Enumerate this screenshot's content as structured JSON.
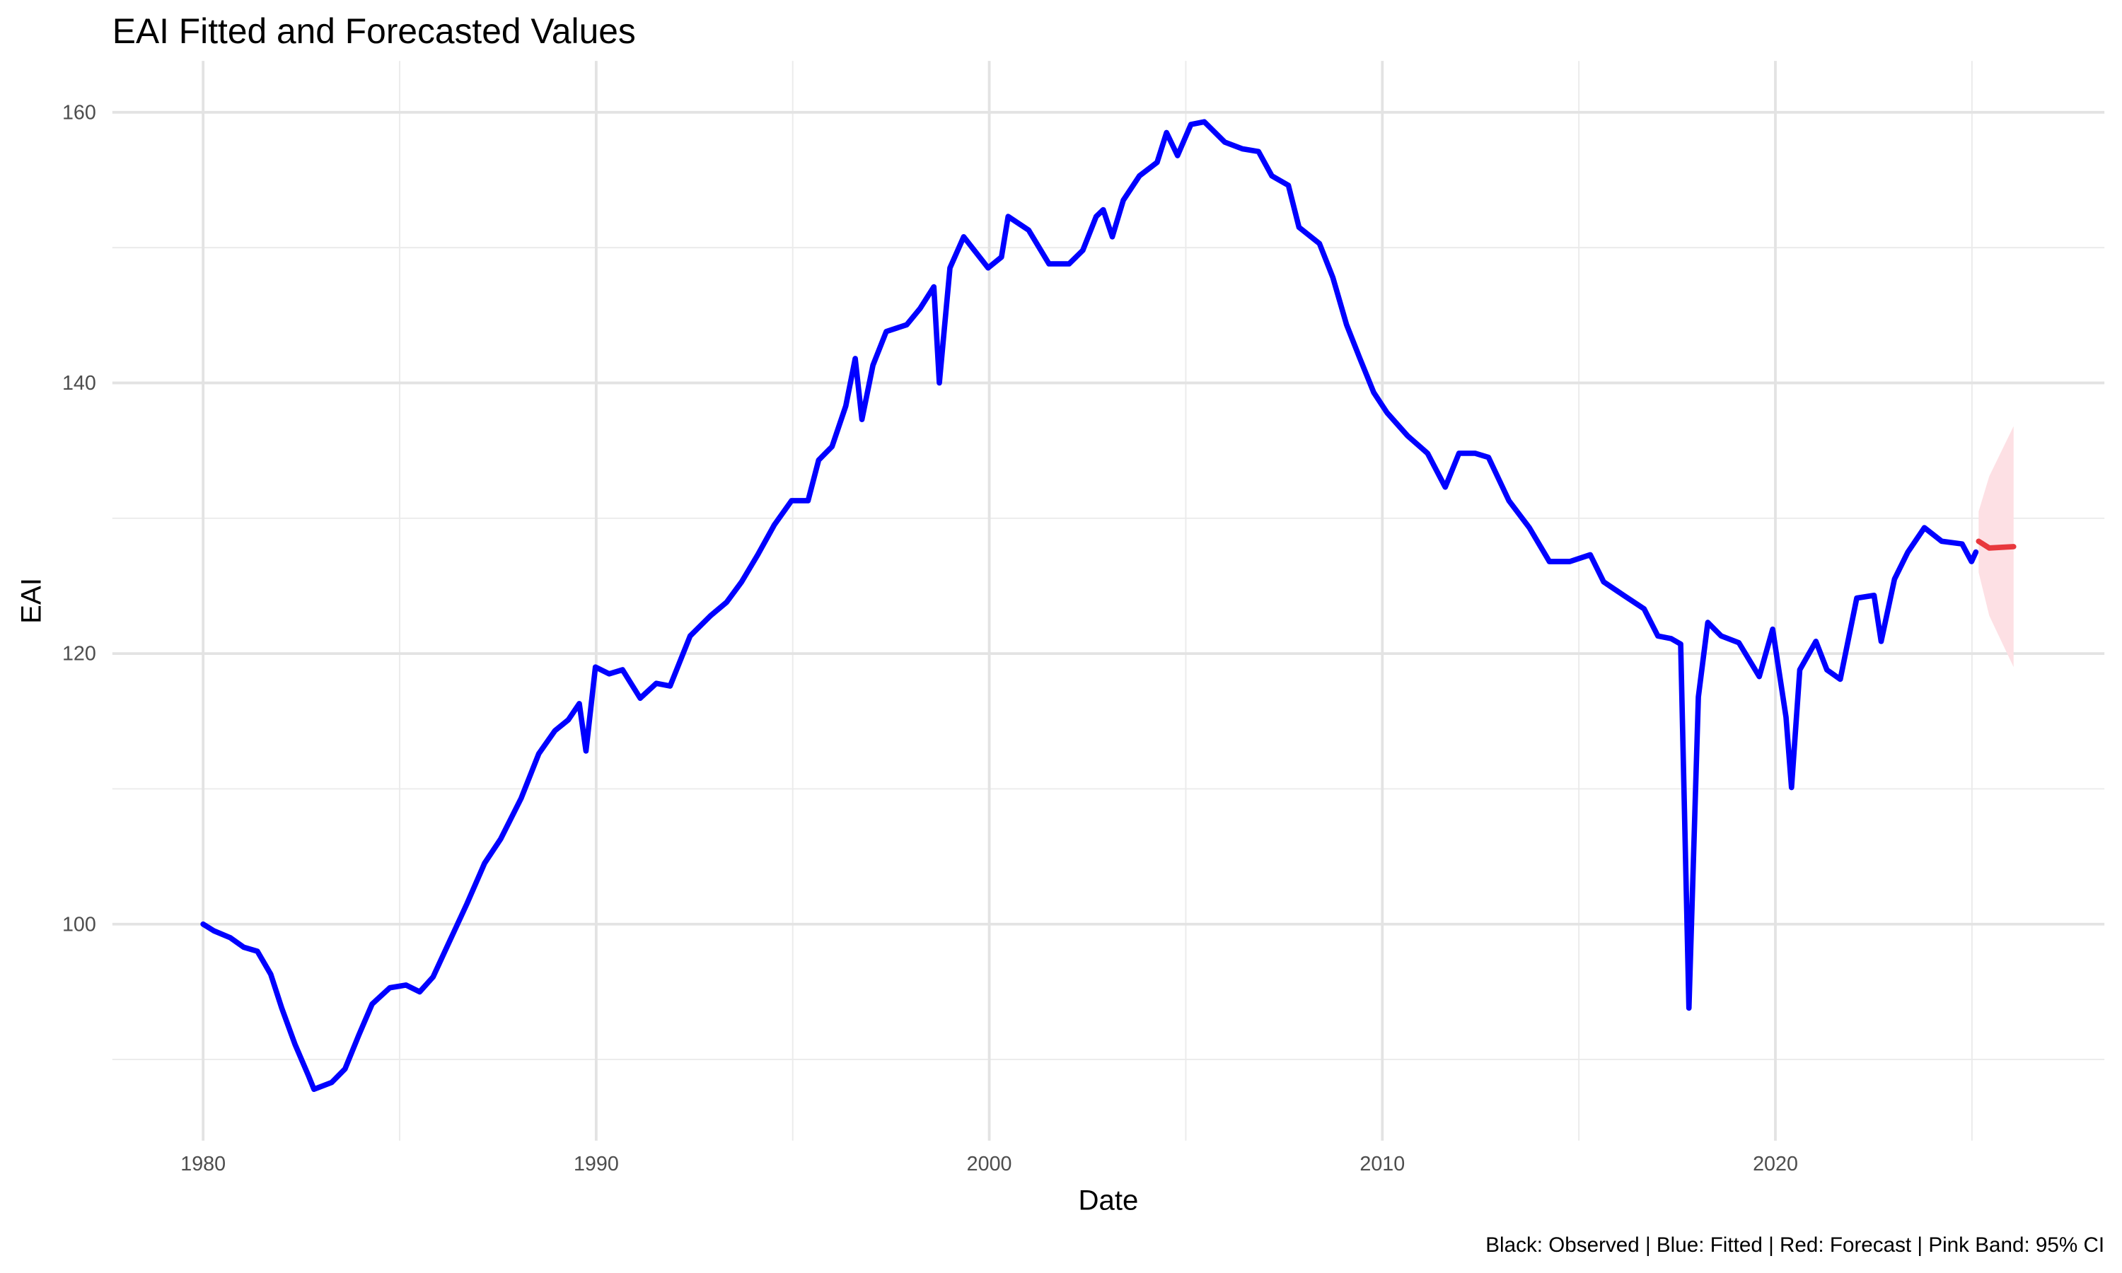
{
  "chart_data": {
    "type": "line",
    "title": "EAI Fitted and Forecasted Values",
    "x_label": "Date",
    "y_label": "EAI",
    "caption": "Black: Observed | Blue: Fitted | Red: Forecast | Pink Band: 95% CI",
    "xlim": [
      1977.69,
      2028.37
    ],
    "ylim": [
      84,
      163.8
    ],
    "xticks": [
      1980,
      1990,
      2000,
      2010,
      2020
    ],
    "yticks": [
      100,
      120,
      140,
      160
    ],
    "x_minor_ticks": [
      1985,
      1995,
      2005,
      2015,
      2025
    ],
    "y_minor_ticks": [
      90,
      110,
      130,
      150
    ],
    "grid": true,
    "series": [
      {
        "name": "Fitted",
        "color": "#0000ff",
        "x": [
          1980.0,
          1980.28,
          1980.69,
          1981.03,
          1981.38,
          1981.72,
          1982.0,
          1982.34,
          1982.68,
          1982.82,
          1983.27,
          1983.61,
          1983.96,
          1984.3,
          1984.75,
          1985.16,
          1985.51,
          1985.85,
          1986.2,
          1986.71,
          1987.16,
          1987.57,
          1988.09,
          1988.54,
          1988.95,
          1989.29,
          1989.57,
          1989.74,
          1989.98,
          1990.33,
          1990.67,
          1991.12,
          1991.53,
          1991.88,
          1992.39,
          1992.91,
          1993.32,
          1993.7,
          1994.11,
          1994.53,
          1994.97,
          1995.39,
          1995.66,
          1996.0,
          1996.35,
          1996.59,
          1996.76,
          1997.04,
          1997.38,
          1997.9,
          1998.24,
          1998.59,
          1998.73,
          1999.0,
          1999.35,
          1999.62,
          1999.97,
          2000.31,
          2000.48,
          2001.0,
          2001.52,
          2002.03,
          2002.38,
          2002.72,
          2002.9,
          2003.13,
          2003.41,
          2003.82,
          2004.27,
          2004.51,
          2004.79,
          2005.13,
          2005.47,
          2005.99,
          2006.44,
          2006.85,
          2007.19,
          2007.61,
          2007.88,
          2008.4,
          2008.74,
          2009.09,
          2009.43,
          2009.78,
          2010.12,
          2010.64,
          2011.15,
          2011.6,
          2011.95,
          2012.36,
          2012.7,
          2013.22,
          2013.74,
          2014.25,
          2014.77,
          2015.29,
          2015.63,
          2016.14,
          2016.66,
          2017.01,
          2017.35,
          2017.59,
          2017.8,
          2018.04,
          2018.28,
          2018.62,
          2019.07,
          2019.59,
          2019.93,
          2020.27,
          2020.41,
          2020.62,
          2021.03,
          2021.31,
          2021.65,
          2022.07,
          2022.51,
          2022.69,
          2023.03,
          2023.37,
          2023.79,
          2024.23,
          2024.75,
          2024.99,
          2025.1
        ],
        "values": [
          100,
          99.5,
          99,
          98.3,
          98,
          96.3,
          93.8,
          91.1,
          88.8,
          87.8,
          88.3,
          89.3,
          91.8,
          94.1,
          95.3,
          95.5,
          95,
          96.1,
          98.3,
          101.5,
          104.5,
          106.3,
          109.3,
          112.6,
          114.3,
          115.1,
          116.3,
          112.8,
          119,
          118.5,
          118.8,
          116.7,
          117.8,
          117.6,
          121.3,
          122.8,
          123.8,
          125.3,
          127.3,
          129.5,
          131.3,
          131.3,
          134.3,
          135.3,
          138.3,
          141.8,
          137.3,
          141.3,
          143.8,
          144.3,
          145.5,
          147.1,
          140,
          148.5,
          150.8,
          149.8,
          148.5,
          149.3,
          152.3,
          151.3,
          148.8,
          148.8,
          149.8,
          152.3,
          152.8,
          150.8,
          153.5,
          155.3,
          156.3,
          158.5,
          156.8,
          159.1,
          159.3,
          157.8,
          157.3,
          157.1,
          155.3,
          154.6,
          151.5,
          150.3,
          147.8,
          144.3,
          141.8,
          139.3,
          137.8,
          136.1,
          134.8,
          132.3,
          134.8,
          134.8,
          134.5,
          131.3,
          129.3,
          126.8,
          126.8,
          127.3,
          125.3,
          124.3,
          123.3,
          121.3,
          121.1,
          120.7,
          93.8,
          116.8,
          122.3,
          121.3,
          120.8,
          118.3,
          121.8,
          115.3,
          110.1,
          118.8,
          120.9,
          118.8,
          118.1,
          124.1,
          124.3,
          120.9,
          125.5,
          127.5,
          129.3,
          128.3,
          128.1,
          126.8,
          127.5
        ]
      },
      {
        "name": "Forecast",
        "color": "#e8383d",
        "x": [
          2025.17,
          2025.44,
          2026.06
        ],
        "values": [
          128.3,
          127.8,
          127.9
        ],
        "lower": [
          126,
          122.8,
          119
        ],
        "upper": [
          130.5,
          133.1,
          136.8
        ],
        "band_color": "#fde0e4"
      }
    ]
  }
}
